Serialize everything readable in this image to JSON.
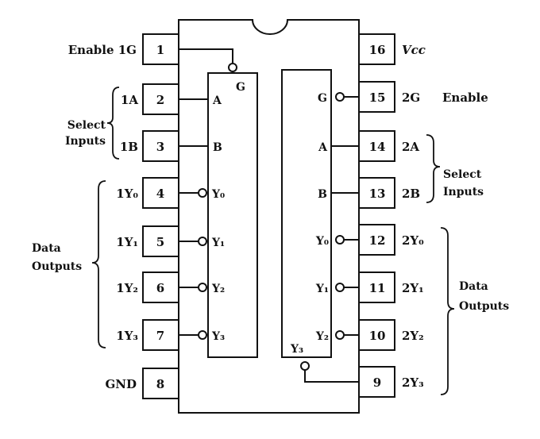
{
  "pins_left": [
    {
      "num": "1",
      "label": "Enable 1G"
    },
    {
      "num": "2",
      "label": "1A"
    },
    {
      "num": "3",
      "label": "1B"
    },
    {
      "num": "4",
      "label": "1Y₀"
    },
    {
      "num": "5",
      "label": "1Y₁"
    },
    {
      "num": "6",
      "label": "1Y₂"
    },
    {
      "num": "7",
      "label": "1Y₃"
    },
    {
      "num": "8",
      "label": "GND"
    }
  ],
  "pins_right": [
    {
      "num": "16",
      "label": "Vcc"
    },
    {
      "num": "15",
      "label": "2G"
    },
    {
      "num": "14",
      "label": "2A"
    },
    {
      "num": "13",
      "label": "2B"
    },
    {
      "num": "12",
      "label": "2Y₀"
    },
    {
      "num": "11",
      "label": "2Y₁"
    },
    {
      "num": "10",
      "label": "2Y₂"
    },
    {
      "num": "9",
      "label": "2Y₃"
    }
  ],
  "enable_right_label": "Enable",
  "groups": {
    "select_left": [
      "Select",
      "Inputs"
    ],
    "data_left": [
      "Data",
      "Outputs"
    ],
    "select_right": [
      "Select",
      "Inputs"
    ],
    "data_right": [
      "Data",
      "Outputs"
    ]
  },
  "decoder1": {
    "enable": "G",
    "inputs": [
      "A",
      "B"
    ],
    "outputs": [
      "Y₀",
      "Y₁",
      "Y₂",
      "Y₃"
    ]
  },
  "decoder2": {
    "enable": "G",
    "inputs": [
      "A",
      "B"
    ],
    "outputs": [
      "Y₀",
      "Y₁",
      "Y₂"
    ],
    "output_y3": "Y₃"
  }
}
